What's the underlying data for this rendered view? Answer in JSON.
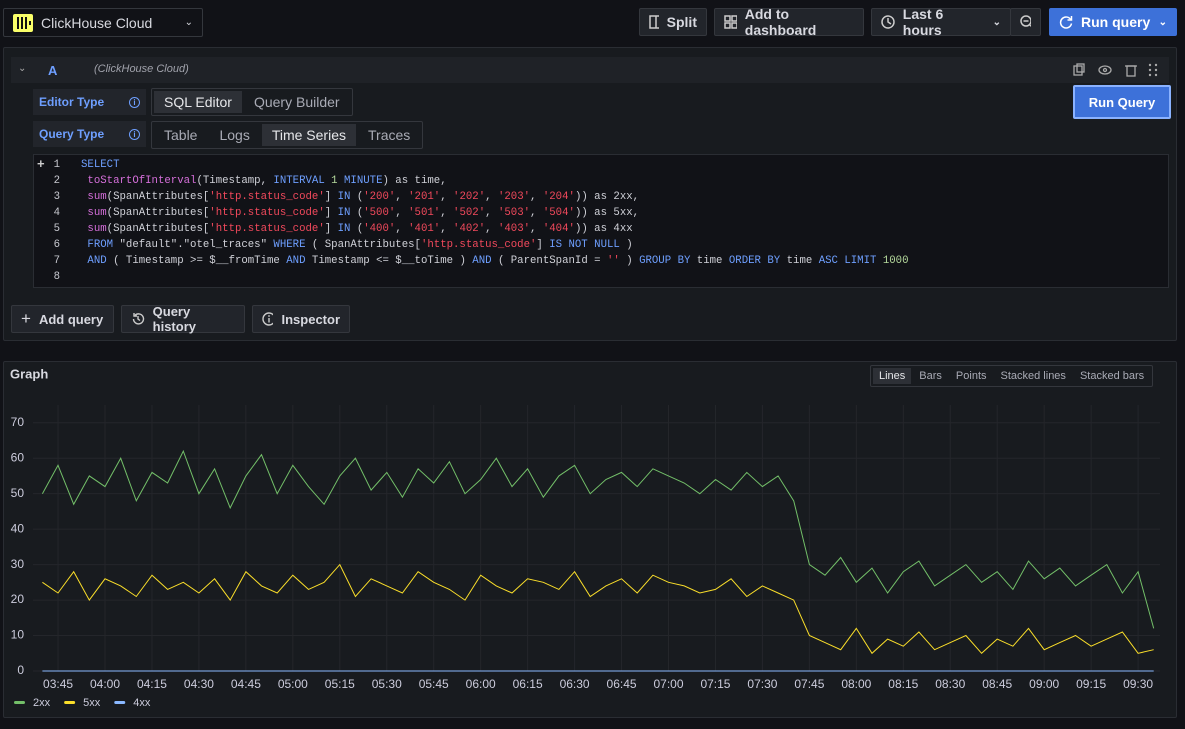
{
  "toolbar": {
    "datasource": "ClickHouse Cloud",
    "split": "Split",
    "add_to_dashboard": "Add to dashboard",
    "time_range": "Last 6 hours",
    "run_query": "Run query"
  },
  "query": {
    "ref_id": "A",
    "datasource": "(ClickHouse Cloud)",
    "editor_type_label": "Editor Type",
    "editor_types": [
      "SQL Editor",
      "Query Builder"
    ],
    "editor_type_active": 0,
    "query_type_label": "Query Type",
    "query_types": [
      "Table",
      "Logs",
      "Time Series",
      "Traces"
    ],
    "query_type_active": 2,
    "run_button": "Run Query",
    "line_numbers": [
      1,
      2,
      3,
      4,
      5,
      6,
      7,
      8
    ],
    "code": [
      "SELECT",
      " toStartOfInterval(Timestamp, INTERVAL 1 MINUTE) as time,",
      " sum(SpanAttributes['http.status_code'] IN ('200', '201', '202', '203', '204')) as 2xx,",
      " sum(SpanAttributes['http.status_code'] IN ('500', '501', '502', '503', '504')) as 5xx,",
      " sum(SpanAttributes['http.status_code'] IN ('400', '401', '402', '403', '404')) as 4xx",
      " FROM \"default\".\"otel_traces\" WHERE ( SpanAttributes['http.status_code'] IS NOT NULL )",
      " AND ( Timestamp >= $__fromTime AND Timestamp <= $__toTime ) AND ( ParentSpanId = '' ) GROUP BY time ORDER BY time ASC LIMIT 1000"
    ]
  },
  "actions": [
    "Add query",
    "Query history",
    "Inspector"
  ],
  "chart_data": {
    "type": "line",
    "title": "Graph",
    "display_modes": [
      "Lines",
      "Bars",
      "Points",
      "Stacked lines",
      "Stacked bars"
    ],
    "display_mode_active": 0,
    "x": [
      "03:40",
      "03:45",
      "03:50",
      "03:55",
      "04:00",
      "04:05",
      "04:10",
      "04:15",
      "04:20",
      "04:25",
      "04:30",
      "04:35",
      "04:40",
      "04:45",
      "04:50",
      "04:55",
      "05:00",
      "05:05",
      "05:10",
      "05:15",
      "05:20",
      "05:25",
      "05:30",
      "05:35",
      "05:40",
      "05:45",
      "05:50",
      "05:55",
      "06:00",
      "06:05",
      "06:10",
      "06:15",
      "06:20",
      "06:25",
      "06:30",
      "06:35",
      "06:40",
      "06:45",
      "06:50",
      "06:55",
      "07:00",
      "07:05",
      "07:10",
      "07:15",
      "07:20",
      "07:25",
      "07:30",
      "07:35",
      "07:40",
      "07:45",
      "07:50",
      "07:55",
      "08:00",
      "08:05",
      "08:10",
      "08:15",
      "08:20",
      "08:25",
      "08:30",
      "08:35",
      "08:40",
      "08:45",
      "08:50",
      "08:55",
      "09:00",
      "09:05",
      "09:10",
      "09:15",
      "09:20",
      "09:25",
      "09:30",
      "09:35"
    ],
    "series": [
      {
        "name": "2xx",
        "color": "#73bf69",
        "values": [
          50,
          58,
          47,
          55,
          52,
          60,
          48,
          56,
          53,
          62,
          50,
          57,
          46,
          55,
          61,
          50,
          58,
          52,
          47,
          55,
          60,
          51,
          56,
          49,
          57,
          53,
          59,
          50,
          54,
          60,
          52,
          57,
          49,
          55,
          58,
          50,
          54,
          56,
          52,
          57,
          55,
          53,
          50,
          54,
          51,
          56,
          52,
          55,
          48,
          30,
          27,
          32,
          25,
          29,
          22,
          28,
          31,
          24,
          27,
          30,
          25,
          28,
          23,
          31,
          26,
          29,
          24,
          27,
          30,
          22,
          28,
          12
        ]
      },
      {
        "name": "5xx",
        "color": "#fade2a",
        "values": [
          25,
          22,
          28,
          20,
          26,
          24,
          21,
          27,
          23,
          25,
          22,
          26,
          20,
          28,
          24,
          22,
          27,
          23,
          25,
          30,
          21,
          26,
          24,
          22,
          28,
          25,
          23,
          20,
          27,
          24,
          22,
          26,
          25,
          23,
          28,
          21,
          24,
          26,
          22,
          27,
          25,
          24,
          22,
          23,
          26,
          21,
          24,
          22,
          20,
          10,
          8,
          6,
          12,
          5,
          9,
          7,
          11,
          6,
          8,
          10,
          5,
          9,
          7,
          12,
          6,
          8,
          10,
          7,
          9,
          11,
          5,
          6
        ]
      },
      {
        "name": "4xx",
        "color": "#8ab8ff",
        "values": [
          0,
          0,
          0,
          0,
          0,
          0,
          0,
          0,
          0,
          0,
          0,
          0,
          0,
          0,
          0,
          0,
          0,
          0,
          0,
          0,
          0,
          0,
          0,
          0,
          0,
          0,
          0,
          0,
          0,
          0,
          0,
          0,
          0,
          0,
          0,
          0,
          0,
          0,
          0,
          0,
          0,
          0,
          0,
          0,
          0,
          0,
          0,
          0,
          0,
          0,
          0,
          0,
          0,
          0,
          0,
          0,
          0,
          0,
          0,
          0,
          0,
          0,
          0,
          0,
          0,
          0,
          0,
          0,
          0,
          0,
          0,
          0
        ]
      }
    ],
    "xlim": [
      "03:37",
      "09:37"
    ],
    "xticks": [
      "03:45",
      "04:00",
      "04:15",
      "04:30",
      "04:45",
      "05:00",
      "05:15",
      "05:30",
      "05:45",
      "06:00",
      "06:15",
      "06:30",
      "06:45",
      "07:00",
      "07:15",
      "07:30",
      "07:45",
      "08:00",
      "08:15",
      "08:30",
      "08:45",
      "09:00",
      "09:15",
      "09:30"
    ],
    "ylim": [
      0,
      75
    ],
    "yticks": [
      0,
      10,
      20,
      30,
      40,
      50,
      60,
      70
    ],
    "grid": true
  }
}
